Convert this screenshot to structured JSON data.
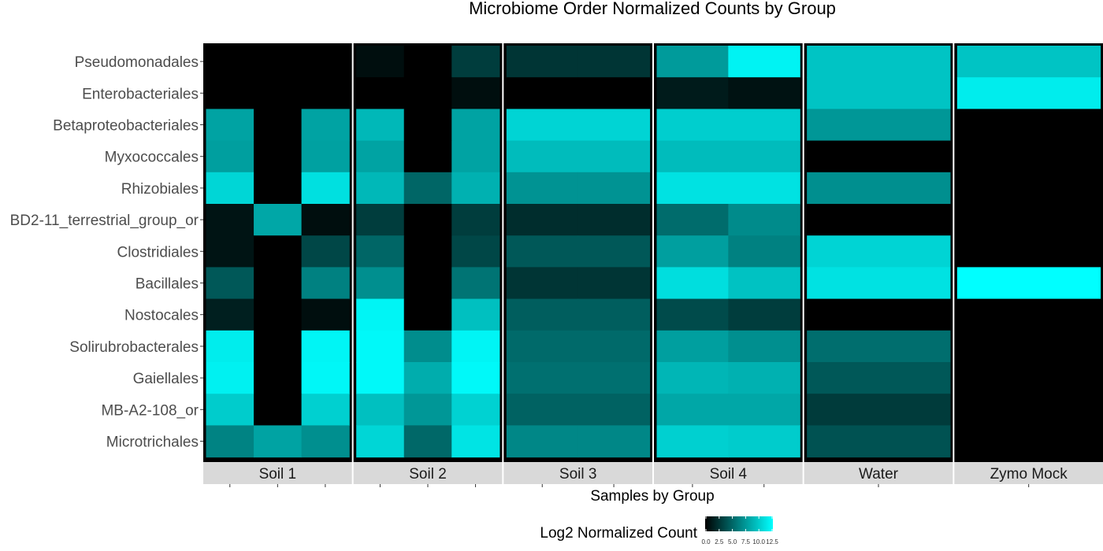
{
  "chart_data": {
    "type": "heatmap",
    "title": "Microbiome Order Normalized Counts by Group",
    "xlabel": "Samples by Group",
    "ylabel": "",
    "legend": {
      "title": "Log2 Normalized Count",
      "ticks": [
        "0.0",
        "2.5",
        "5.0",
        "7.5",
        "10.0",
        "12.5"
      ],
      "range": [
        0,
        12.5
      ],
      "low_color": "#000000",
      "high_color": "#00ffff",
      "placement": "bottom"
    },
    "rows": [
      "Pseudomonadales",
      "Enterobacteriales",
      "Betaproteobacteriales",
      "Myxococcales",
      "Rhizobiales",
      "BD2-11_terrestrial_group_or",
      "Clostridiales",
      "Bacillales",
      "Nostocales",
      "Solirubrobacterales",
      "Gaiellales",
      "MB-A2-108_or",
      "Microtrichales"
    ],
    "groups": [
      {
        "name": "Soil 1",
        "values": [
          [
            0,
            0,
            0
          ],
          [
            0,
            0,
            0
          ],
          [
            8.0,
            0,
            8.0
          ],
          [
            7.8,
            0,
            7.9
          ],
          [
            10.5,
            0,
            11.0
          ],
          [
            1.0,
            8.2,
            0.7
          ],
          [
            1.0,
            0,
            3.5
          ],
          [
            4.3,
            0,
            6.3
          ],
          [
            1.5,
            0,
            0.7
          ],
          [
            11.6,
            0,
            12.0
          ],
          [
            11.8,
            0,
            12.1
          ],
          [
            10.0,
            0,
            10.2
          ],
          [
            6.4,
            8.0,
            7.0
          ]
        ]
      },
      {
        "name": "Soil 2",
        "values": [
          [
            0.7,
            0,
            3.0
          ],
          [
            0,
            0,
            0.7
          ],
          [
            9.0,
            0,
            8.0
          ],
          [
            8.0,
            0,
            8.0
          ],
          [
            9.0,
            5.0,
            8.7
          ],
          [
            3.0,
            0,
            3.0
          ],
          [
            5.0,
            0,
            3.5
          ],
          [
            7.0,
            0,
            5.7
          ],
          [
            12.0,
            0,
            9.4
          ],
          [
            12.2,
            6.9,
            12.0
          ],
          [
            12.2,
            8.5,
            12.2
          ],
          [
            9.4,
            7.4,
            10.3
          ],
          [
            10.5,
            5.1,
            11.2
          ]
        ]
      },
      {
        "name": "Soil 3",
        "values": [
          [
            2.6,
            2.6
          ],
          [
            0,
            0
          ],
          [
            10.4,
            10.4
          ],
          [
            9.2,
            9.2
          ],
          [
            7.2,
            7.2
          ],
          [
            2.2,
            2.2
          ],
          [
            4.3,
            4.3
          ],
          [
            2.6,
            2.6
          ],
          [
            4.6,
            4.6
          ],
          [
            5.2,
            5.2
          ],
          [
            5.5,
            5.5
          ],
          [
            4.8,
            4.8
          ],
          [
            6.6,
            6.6
          ]
        ]
      },
      {
        "name": "Soil 4",
        "values": [
          [
            7.6,
            11.9
          ],
          [
            1.3,
            0.9
          ],
          [
            10.1,
            10.1
          ],
          [
            9.2,
            9.2
          ],
          [
            11.1,
            11.1
          ],
          [
            5.3,
            6.8
          ],
          [
            7.8,
            6.3
          ],
          [
            10.9,
            9.5
          ],
          [
            3.7,
            3.0
          ],
          [
            7.8,
            7.0
          ],
          [
            8.9,
            8.7
          ],
          [
            8.2,
            8.2
          ],
          [
            10.2,
            10.0
          ]
        ]
      },
      {
        "name": "Water",
        "values": [
          [
            9.6
          ],
          [
            9.6
          ],
          [
            7.4
          ],
          [
            0
          ],
          [
            7.0
          ],
          [
            0
          ],
          [
            10.4
          ],
          [
            11.1
          ],
          [
            0
          ],
          [
            5.4
          ],
          [
            4.3
          ],
          [
            2.9
          ],
          [
            4.0
          ]
        ]
      },
      {
        "name": "Zymo Mock",
        "values": [
          [
            9.6
          ],
          [
            11.6
          ],
          [
            0
          ],
          [
            0
          ],
          [
            0
          ],
          [
            0
          ],
          [
            0
          ],
          [
            12.6
          ],
          [
            0
          ],
          [
            0
          ],
          [
            0
          ],
          [
            0
          ],
          [
            0
          ]
        ]
      }
    ]
  }
}
